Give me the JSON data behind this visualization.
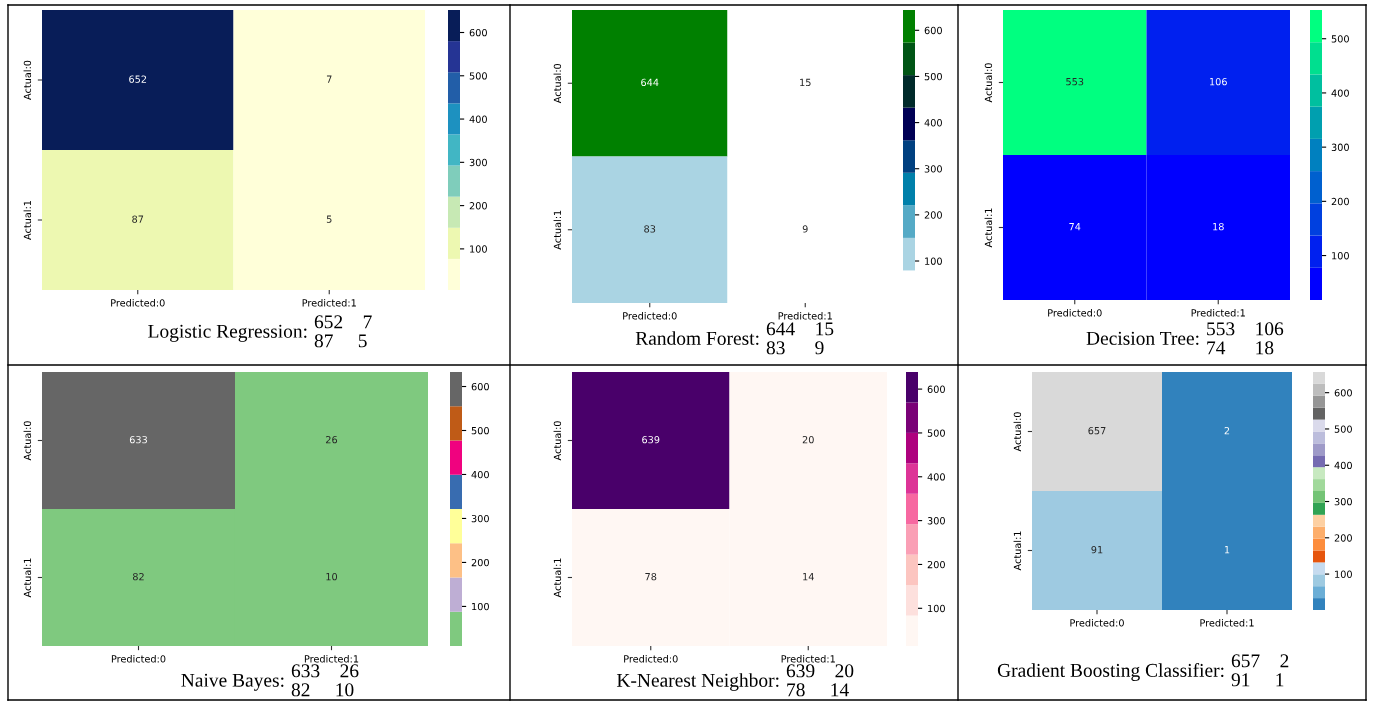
{
  "chart_data": [
    {
      "type": "heatmap",
      "categories": [
        "Predicted:0",
        "Predicted:1"
      ],
      "y_categories": [
        "Actual:0",
        "Actual:1"
      ],
      "cells": [
        [
          652,
          7
        ],
        [
          87,
          5
        ]
      ],
      "data_labels": true,
      "clim": [
        5,
        652
      ],
      "cticks": [
        100,
        200,
        300,
        400,
        500,
        600
      ],
      "colors": [
        "#ffffd9",
        "#edf8b1",
        "#c7e9b4",
        "#7fcdbb",
        "#41b6c4",
        "#1d91c0",
        "#225ea8",
        "#253494",
        "#081d58"
      ],
      "annotations": [
        "Logistic Regression:",
        "652    7",
        "87     5"
      ]
    },
    {
      "type": "heatmap",
      "categories": [
        "Predicted:0",
        "Predicted:1"
      ],
      "y_categories": [
        "Actual:0",
        "Actual:1"
      ],
      "cells": [
        [
          644,
          15
        ],
        [
          83,
          9
        ]
      ],
      "data_labels": true,
      "clim": [
        9,
        644
      ],
      "cticks": [
        100,
        200,
        300,
        400,
        500,
        600
      ],
      "colors": [
        "#ffffff",
        "#aad4e3",
        "#55aac6",
        "#0080aa",
        "#004080",
        "#000055",
        "#002a2a",
        "#005515",
        "#008000"
      ],
      "annotations": [
        "Random Forest:",
        "644    15",
        "83      9"
      ]
    },
    {
      "type": "heatmap",
      "categories": [
        "Predicted:0",
        "Predicted:1"
      ],
      "y_categories": [
        "Actual:0",
        "Actual:1"
      ],
      "cells": [
        [
          553,
          106
        ],
        [
          74,
          18
        ]
      ],
      "data_labels": true,
      "clim": [
        18,
        553
      ],
      "cticks": [
        100,
        200,
        300,
        400,
        500
      ],
      "colors": [
        "#0000ff",
        "#0020ef",
        "#0040df",
        "#0060cf",
        "#0080bf",
        "#009faf",
        "#00bf9f",
        "#00df8f",
        "#00ff80"
      ],
      "annotations": [
        "Decision Tree:",
        "553    106",
        "74      18"
      ]
    },
    {
      "type": "heatmap",
      "categories": [
        "Predicted:0",
        "Predicted:1"
      ],
      "y_categories": [
        "Actual:0",
        "Actual:1"
      ],
      "cells": [
        [
          633,
          26
        ],
        [
          82,
          10
        ]
      ],
      "data_labels": true,
      "clim": [
        10,
        633
      ],
      "cticks": [
        100,
        200,
        300,
        400,
        500,
        600
      ],
      "colors": [
        "#7fc97f",
        "#beaed4",
        "#fdc086",
        "#ffff99",
        "#386cb0",
        "#f0027f",
        "#bf5b17",
        "#666666"
      ],
      "annotations": [
        "Naive Bayes:",
        "633    26",
        "82     10"
      ]
    },
    {
      "type": "heatmap",
      "categories": [
        "Predicted:0",
        "Predicted:1"
      ],
      "y_categories": [
        "Actual:0",
        "Actual:1"
      ],
      "cells": [
        [
          639,
          20
        ],
        [
          78,
          14
        ]
      ],
      "data_labels": true,
      "clim": [
        14,
        639
      ],
      "cticks": [
        100,
        200,
        300,
        400,
        500,
        600
      ],
      "colors": [
        "#fff7f3",
        "#fde0dd",
        "#fcc5c0",
        "#fa9fb5",
        "#f768a1",
        "#dd3497",
        "#ae017e",
        "#7a0177",
        "#49006a"
      ],
      "annotations": [
        "K-Nearest Neighbor:",
        "639    20",
        "78     14"
      ]
    },
    {
      "type": "heatmap",
      "categories": [
        "Predicted:0",
        "Predicted:1"
      ],
      "y_categories": [
        "Actual:0",
        "Actual:1"
      ],
      "cells": [
        [
          657,
          2
        ],
        [
          91,
          1
        ]
      ],
      "data_labels": true,
      "clim": [
        1,
        657
      ],
      "cticks": [
        100,
        200,
        300,
        400,
        500,
        600
      ],
      "colors": [
        "#3182bd",
        "#6baed6",
        "#9ecae1",
        "#c6dbef",
        "#e6550d",
        "#fd8d3c",
        "#fdae6b",
        "#fdd0a2",
        "#31a354",
        "#74c476",
        "#a1d99b",
        "#c7e9c0",
        "#756bb1",
        "#9e9ac8",
        "#bcbddc",
        "#dadaeb",
        "#636363",
        "#969696",
        "#bdbdbd",
        "#d9d9d9"
      ],
      "annotations": [
        "Gradient Boosting Classifier:",
        "657    2",
        "91     1"
      ]
    }
  ]
}
